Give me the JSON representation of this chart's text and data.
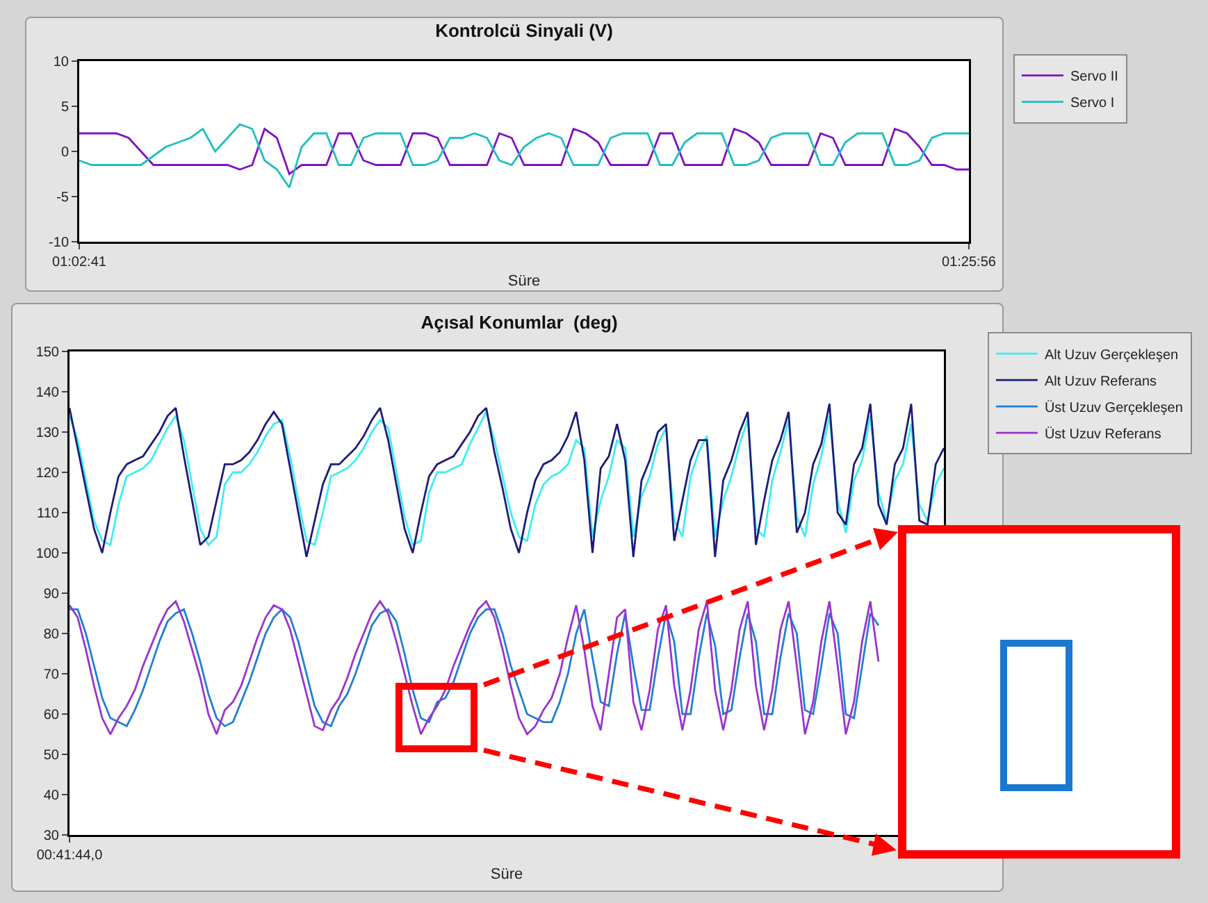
{
  "chart_data": [
    {
      "type": "line",
      "title": "Kontrolcü Sinyali (V)",
      "xlabel": "Süre",
      "categories": [
        "01:02:41",
        null,
        null,
        null,
        null,
        null,
        null,
        null,
        null,
        null,
        null,
        null,
        null,
        null,
        null,
        null,
        null,
        null,
        null,
        null,
        null,
        null,
        null,
        null,
        null,
        null,
        null,
        null,
        null,
        null,
        null,
        null,
        null,
        null,
        null,
        null,
        null,
        null,
        null,
        null,
        null,
        null,
        null,
        null,
        null,
        null,
        null,
        null,
        null,
        null,
        null,
        null,
        null,
        null,
        null,
        null,
        null,
        null,
        null,
        null,
        null,
        null,
        null,
        null,
        null,
        null,
        null,
        null,
        null,
        null,
        null,
        null,
        "01:25:56"
      ],
      "ylim": [
        -10,
        10
      ],
      "yticks": [
        -10,
        -5,
        0,
        5,
        10
      ],
      "legend": "top right",
      "series": [
        {
          "name": "Servo II",
          "color": "#7f10c4",
          "values": [
            2,
            2,
            2,
            2,
            1.5,
            0,
            -1.5,
            -1.5,
            -1.5,
            -1.5,
            -1.5,
            -1.5,
            -1.5,
            -2,
            -1.5,
            2.5,
            1.5,
            -2.5,
            -1.5,
            -1.5,
            -1.5,
            2,
            2,
            -1,
            -1.5,
            -1.5,
            -1.5,
            2,
            2,
            1.5,
            -1.5,
            -1.5,
            -1.5,
            -1.5,
            2,
            1.5,
            -1.5,
            -1.5,
            -1.5,
            -1.5,
            2.5,
            2,
            1,
            -1.5,
            -1.5,
            -1.5,
            -1.5,
            2,
            2,
            -1.5,
            -1.5,
            -1.5,
            -1.5,
            2.5,
            2,
            1,
            -1.5,
            -1.5,
            -1.5,
            -1.5,
            2,
            1.5,
            -1.5,
            -1.5,
            -1.5,
            -1.5,
            2.5,
            2,
            0.5,
            -1.5,
            -1.5,
            -2,
            -2
          ]
        },
        {
          "name": "Servo I",
          "color": "#1fbfbf",
          "values": [
            -1,
            -1.5,
            -1.5,
            -1.5,
            -1.5,
            -1.5,
            -0.5,
            0.5,
            1,
            1.5,
            2.5,
            0,
            1.5,
            3,
            2.5,
            -1,
            -2,
            -4,
            0.5,
            2,
            2,
            -1.5,
            -1.5,
            1.5,
            2,
            2,
            2,
            -1.5,
            -1.5,
            -1,
            1.5,
            1.5,
            2,
            1.5,
            -1,
            -1.5,
            0.5,
            1.5,
            2,
            1.5,
            -1.5,
            -1.5,
            -1.5,
            1.5,
            2,
            2,
            2,
            -1.5,
            -1.5,
            1,
            2,
            2,
            2,
            -1.5,
            -1.5,
            -1,
            1.5,
            2,
            2,
            2,
            -1.5,
            -1.5,
            1,
            2,
            2,
            2,
            -1.5,
            -1.5,
            -1,
            1.5,
            2,
            2,
            2
          ]
        }
      ]
    },
    {
      "type": "line",
      "title": "Açısal Konumlar  (deg)",
      "xlabel": "Süre",
      "categories": [
        "00:41:44,0",
        null,
        null,
        null,
        null,
        null,
        null,
        null,
        null,
        null,
        null,
        null,
        null,
        null,
        null,
        null,
        null,
        null,
        null,
        null,
        null,
        null,
        null,
        null,
        null,
        null,
        null,
        null,
        null,
        null,
        null,
        null,
        null,
        null,
        null,
        null,
        null,
        null,
        null,
        null,
        null,
        null,
        null,
        null,
        null,
        null,
        null,
        null,
        null,
        null,
        null,
        null,
        null,
        null,
        null,
        null,
        null,
        null,
        null,
        null,
        null,
        null,
        null,
        null,
        null,
        null,
        null,
        null,
        null,
        null,
        null,
        null,
        null,
        null,
        null,
        null,
        null,
        null,
        null,
        null,
        null,
        null,
        null,
        null,
        null,
        null,
        null,
        null,
        null,
        null,
        null,
        null,
        null,
        null,
        null,
        null,
        null,
        null,
        null,
        null,
        null,
        null,
        null,
        null,
        null,
        null,
        null,
        null
      ],
      "ylim": [
        30,
        150
      ],
      "yticks": [
        30,
        40,
        50,
        60,
        70,
        80,
        90,
        100,
        110,
        120,
        130,
        140,
        150
      ],
      "legend": "top right",
      "series": [
        {
          "name": "Alt Uzuv Gerçekleşen",
          "color": "#3eeef0",
          "values": [
            134,
            128,
            118,
            108,
            103,
            102,
            112,
            119,
            120,
            121,
            123,
            127,
            131,
            134,
            128,
            117,
            106,
            102,
            104,
            117,
            120,
            120,
            122,
            125,
            129,
            132,
            133,
            124,
            113,
            103,
            102,
            110,
            119,
            120,
            121,
            123,
            126,
            130,
            133,
            131,
            120,
            109,
            102,
            103,
            115,
            120,
            120,
            121,
            122,
            127,
            131,
            135,
            128,
            119,
            110,
            104,
            103,
            112,
            117,
            119,
            120,
            122,
            128,
            126,
            104,
            113,
            119,
            128,
            126,
            104,
            114,
            119,
            127,
            131,
            108,
            104,
            119,
            125,
            129,
            104,
            113,
            119,
            127,
            133,
            106,
            104,
            118,
            125,
            133,
            109,
            104,
            117,
            124,
            134,
            113,
            105,
            118,
            123,
            134,
            115,
            108,
            118,
            122,
            132,
            112,
            108,
            117,
            121
          ]
        },
        {
          "name": "Alt Uzuv Referans",
          "color": "#1c1c7a",
          "values": [
            136,
            126,
            116,
            106,
            100,
            110,
            119,
            122,
            123,
            124,
            127,
            130,
            134,
            136,
            124,
            113,
            102,
            104,
            113,
            122,
            122,
            123,
            125,
            128,
            132,
            135,
            132,
            121,
            110,
            99,
            108,
            117,
            122,
            122,
            124,
            126,
            129,
            133,
            136,
            128,
            117,
            106,
            100,
            110,
            119,
            122,
            123,
            124,
            127,
            130,
            134,
            136,
            125,
            116,
            106,
            100,
            110,
            118,
            122,
            123,
            125,
            129,
            135,
            123,
            100,
            121,
            124,
            132,
            123,
            99,
            118,
            123,
            130,
            132,
            103,
            113,
            123,
            128,
            128,
            99,
            118,
            123,
            130,
            135,
            102,
            113,
            123,
            128,
            135,
            105,
            110,
            122,
            127,
            137,
            110,
            107,
            122,
            126,
            137,
            112,
            107,
            122,
            126,
            137,
            108,
            107,
            122,
            126
          ]
        },
        {
          "name": "Üst Uzuv Gerçekleşen",
          "color": "#2080d0",
          "values": [
            86,
            86,
            80,
            72,
            64,
            59,
            58,
            57,
            61,
            66,
            72,
            78,
            83,
            85,
            86,
            80,
            73,
            65,
            59,
            57,
            58,
            63,
            68,
            74,
            80,
            84,
            86,
            84,
            78,
            70,
            62,
            58,
            57,
            62,
            65,
            70,
            76,
            82,
            85,
            86,
            83,
            75,
            66,
            59,
            58,
            63,
            64,
            68,
            74,
            80,
            84,
            86,
            86,
            80,
            72,
            66,
            60,
            59,
            58,
            58,
            63,
            70,
            80,
            86,
            74,
            63,
            62,
            75,
            85,
            72,
            61,
            61,
            74,
            85,
            78,
            60,
            60,
            74,
            85,
            77,
            60,
            61,
            74,
            85,
            78,
            60,
            60,
            74,
            85,
            80,
            61,
            60,
            72,
            85,
            80,
            60,
            59,
            72,
            85,
            82,
            null,
            null,
            null,
            null,
            null,
            null,
            null,
            null
          ]
        },
        {
          "name": "Üst Uzuv Referans",
          "color": "#9a34d0",
          "values": [
            87,
            84,
            76,
            67,
            59,
            55,
            59,
            62,
            66,
            72,
            77,
            82,
            86,
            88,
            83,
            76,
            69,
            60,
            55,
            61,
            63,
            67,
            73,
            79,
            84,
            87,
            86,
            81,
            73,
            65,
            57,
            56,
            61,
            64,
            69,
            75,
            80,
            85,
            88,
            85,
            78,
            70,
            62,
            55,
            59,
            62,
            66,
            72,
            77,
            82,
            86,
            88,
            84,
            76,
            67,
            59,
            55,
            57,
            61,
            64,
            70,
            79,
            87,
            76,
            62,
            56,
            70,
            84,
            86,
            63,
            56,
            66,
            81,
            87,
            67,
            56,
            66,
            81,
            88,
            66,
            56,
            66,
            81,
            88,
            67,
            56,
            66,
            81,
            88,
            72,
            55,
            63,
            78,
            88,
            72,
            55,
            63,
            78,
            88,
            73,
            null,
            null,
            null,
            null,
            null,
            null,
            null,
            null
          ]
        }
      ]
    }
  ]
}
